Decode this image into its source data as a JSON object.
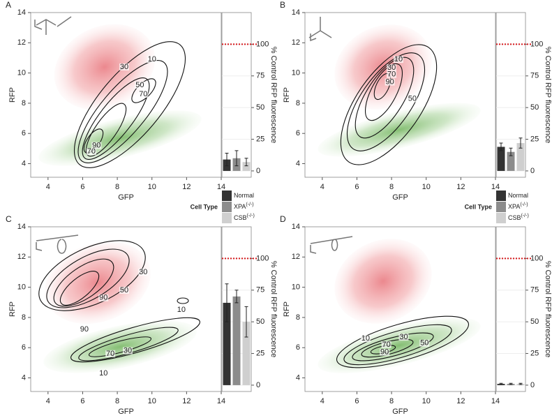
{
  "chart_data": [
    {
      "type": "contour",
      "panel_label": "A",
      "xlabel": "GFP",
      "ylabel": "RFP",
      "xlim": [
        3,
        14
      ],
      "ylim": [
        3.1,
        14
      ],
      "xticks": [
        4,
        6,
        8,
        10,
        12,
        14
      ],
      "yticks": [
        4,
        6,
        8,
        10,
        12,
        14
      ],
      "contour_labels": [
        {
          "label": 10,
          "x": 10.0,
          "y": 10.9
        },
        {
          "label": 30,
          "x": 8.4,
          "y": 10.4
        },
        {
          "label": 50,
          "x": 9.3,
          "y": 9.2
        },
        {
          "label": 70,
          "x": 9.5,
          "y": 8.6
        },
        {
          "label": 90,
          "x": 6.8,
          "y": 5.2
        },
        {
          "label": 70,
          "x": 6.5,
          "y": 4.8
        }
      ]
    },
    {
      "type": "bar",
      "ylabel": "% Control RFP fluorescence",
      "ylim": [
        -5,
        125
      ],
      "yticks": [
        0,
        25,
        50,
        75,
        100
      ],
      "reference": 100,
      "values": [
        9,
        10,
        7
      ],
      "errors": [
        5,
        6,
        3
      ],
      "colors": [
        "#333333",
        "#8c8c8c",
        "#cfcfcf"
      ],
      "legend": {
        "title": "Cell Type",
        "entries": [
          {
            "name": "Normal"
          },
          {
            "name": "XPA",
            "superscript": "(-/-)"
          },
          {
            "name": "CSB",
            "superscript": "(-/-)"
          }
        ]
      }
    },
    {
      "type": "contour",
      "panel_label": "B",
      "xlabel": "GFP",
      "ylabel": "RFP",
      "xlim": [
        3,
        14
      ],
      "ylim": [
        3.1,
        14
      ],
      "xticks": [
        4,
        6,
        8,
        10,
        12,
        14
      ],
      "yticks": [
        4,
        6,
        8,
        10,
        12,
        14
      ],
      "contour_labels": [
        {
          "label": 10,
          "x": 8.4,
          "y": 10.9
        },
        {
          "label": 30,
          "x": 8.0,
          "y": 10.35
        },
        {
          "label": 70,
          "x": 8.0,
          "y": 9.9
        },
        {
          "label": 90,
          "x": 7.9,
          "y": 9.4
        },
        {
          "label": 50,
          "x": 9.2,
          "y": 8.3
        }
      ]
    },
    {
      "type": "bar",
      "ylabel": "% Control RFP fluorescence",
      "ylim": [
        -5,
        125
      ],
      "yticks": [
        0,
        25,
        50,
        75,
        100
      ],
      "reference": 100,
      "values": [
        19,
        15,
        22
      ],
      "errors": [
        3,
        3,
        4
      ],
      "colors": [
        "#333333",
        "#8c8c8c",
        "#cfcfcf"
      ],
      "legend": {
        "title": "Cell Type",
        "entries": [
          {
            "name": "Normal"
          },
          {
            "name": "XPA",
            "superscript": "(-/-)"
          },
          {
            "name": "CSB",
            "superscript": "(-/-)"
          }
        ]
      }
    },
    {
      "type": "contour",
      "panel_label": "C",
      "xlabel": "GFP",
      "ylabel": "RFP",
      "xlim": [
        3,
        14
      ],
      "ylim": [
        3.1,
        14
      ],
      "xticks": [
        4,
        6,
        8,
        10,
        12,
        14
      ],
      "yticks": [
        4,
        6,
        8,
        10,
        12,
        14
      ],
      "contour_labels": [
        {
          "label": 30,
          "x": 9.5,
          "y": 11.0
        },
        {
          "label": 50,
          "x": 8.4,
          "y": 9.8
        },
        {
          "label": 90,
          "x": 7.2,
          "y": 9.3
        },
        {
          "label": 90,
          "x": 6.1,
          "y": 7.2
        },
        {
          "label": 10,
          "x": 11.7,
          "y": 8.5
        },
        {
          "label": 30,
          "x": 8.6,
          "y": 5.8
        },
        {
          "label": 70,
          "x": 7.6,
          "y": 5.6
        },
        {
          "label": 10,
          "x": 7.2,
          "y": 4.3
        }
      ]
    },
    {
      "type": "bar",
      "ylabel": "% Control RFP fluorescence",
      "ylim": [
        -5,
        125
      ],
      "yticks": [
        0,
        25,
        50,
        75,
        100
      ],
      "reference": 100,
      "values": [
        65,
        70,
        50
      ],
      "errors": [
        15,
        5,
        12
      ],
      "colors": [
        "#333333",
        "#8c8c8c",
        "#cfcfcf"
      ]
    },
    {
      "type": "contour",
      "panel_label": "D",
      "xlabel": "GFP",
      "ylabel": "RFP",
      "xlim": [
        3,
        14
      ],
      "ylim": [
        3.1,
        14
      ],
      "xticks": [
        4,
        6,
        8,
        10,
        12,
        14
      ],
      "yticks": [
        4,
        6,
        8,
        10,
        12,
        14
      ],
      "contour_labels": [
        {
          "label": 10,
          "x": 6.5,
          "y": 6.6
        },
        {
          "label": 30,
          "x": 8.7,
          "y": 6.7
        },
        {
          "label": 70,
          "x": 7.7,
          "y": 6.2
        },
        {
          "label": 90,
          "x": 7.6,
          "y": 5.7
        },
        {
          "label": 50,
          "x": 9.9,
          "y": 6.3
        }
      ]
    },
    {
      "type": "bar",
      "ylabel": "% Control RFP fluorescence",
      "ylim": [
        -5,
        125
      ],
      "yticks": [
        0,
        25,
        50,
        75,
        100
      ],
      "reference": 100,
      "values": [
        1,
        1,
        1
      ],
      "errors": [
        0.5,
        0.5,
        0.5
      ],
      "colors": [
        "#333333",
        "#8c8c8c",
        "#cfcfcf"
      ]
    }
  ]
}
